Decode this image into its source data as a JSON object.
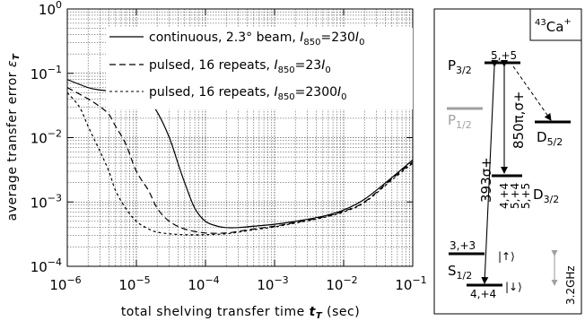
{
  "chart_data": {
    "type": "line",
    "xscale": "log",
    "yscale": "log",
    "xlim": [
      1e-06,
      0.1
    ],
    "ylim": [
      0.0001,
      1
    ],
    "xlabel": {
      "main": "total shelving transfer time ",
      "sym": "t",
      "sub": "T",
      "unit": " (sec)"
    },
    "ylabel": {
      "main": "average transfer error ",
      "sym": "ε",
      "sub": "T"
    },
    "x_tick_labels": [
      {
        "base": "10",
        "exp": "−6"
      },
      {
        "base": "10",
        "exp": "−5"
      },
      {
        "base": "10",
        "exp": "−4"
      },
      {
        "base": "10",
        "exp": "−3"
      },
      {
        "base": "10",
        "exp": "−2"
      },
      {
        "base": "10",
        "exp": "−1"
      }
    ],
    "y_tick_labels": [
      {
        "base": "10",
        "exp": "0"
      },
      {
        "base": "10",
        "exp": "−1"
      },
      {
        "base": "10",
        "exp": "−2"
      },
      {
        "base": "10",
        "exp": "−3"
      },
      {
        "base": "10",
        "exp": "−4"
      }
    ],
    "grid": true,
    "legend_position": "top-right",
    "series": [
      {
        "name": "continuous, 2.3° beam, I850=230I0",
        "legend": {
          "text": "continuous, 2.3° beam, ",
          "var": "I",
          "sub": "850",
          "eq": "=230",
          "var2": "I",
          "sub2": "0"
        },
        "style": "solid",
        "x": [
          1e-06,
          2e-06,
          3e-06,
          5e-06,
          7e-06,
          1e-05,
          1.5e-05,
          2e-05,
          3e-05,
          4e-05,
          5e-05,
          7e-05,
          0.0001,
          0.00015,
          0.0002,
          0.0003,
          0.0005,
          0.001,
          0.002,
          0.005,
          0.01,
          0.02,
          0.05,
          0.1
        ],
        "y": [
          0.08,
          0.06,
          0.055,
          0.052,
          0.05,
          0.045,
          0.035,
          0.025,
          0.01,
          0.004,
          0.002,
          0.0008,
          0.0005,
          0.00042,
          0.0004,
          0.0004,
          0.00042,
          0.00045,
          0.0005,
          0.0006,
          0.00075,
          0.0011,
          0.0024,
          0.0045
        ]
      },
      {
        "name": "pulsed, 16 repeats, I850=23I0",
        "legend": {
          "text": "pulsed, 16 repeats, ",
          "var": "I",
          "sub": "850",
          "eq": "=23",
          "var2": "I",
          "sub2": "0"
        },
        "style": "dashed",
        "x": [
          1e-06,
          2e-06,
          3e-06,
          4e-06,
          5e-06,
          7e-06,
          1e-05,
          1.5e-05,
          2e-05,
          3e-05,
          5e-05,
          0.0001,
          0.0002,
          0.0003,
          0.0005,
          0.001,
          0.002,
          0.005,
          0.01,
          0.02,
          0.05,
          0.1
        ],
        "y": [
          0.06,
          0.04,
          0.03,
          0.023,
          0.015,
          0.008,
          0.003,
          0.0015,
          0.0008,
          0.0005,
          0.00038,
          0.00033,
          0.00033,
          0.00035,
          0.00038,
          0.00042,
          0.00048,
          0.00058,
          0.00072,
          0.001,
          0.0023,
          0.0042
        ]
      },
      {
        "name": "pulsed, 16 repeats, I850=2300I0",
        "legend": {
          "text": "pulsed, 16 repeats, ",
          "var": "I",
          "sub": "850",
          "eq": "=2300",
          "var2": "I",
          "sub2": "0"
        },
        "style": "short-dashed",
        "x": [
          1e-06,
          1.5e-06,
          2e-06,
          3e-06,
          4e-06,
          5e-06,
          7e-06,
          1e-05,
          1.5e-05,
          2e-05,
          3e-05,
          5e-05,
          0.0001,
          0.0002,
          0.0003,
          0.0005,
          0.001,
          0.002,
          0.005,
          0.01,
          0.02,
          0.05,
          0.1
        ],
        "y": [
          0.05,
          0.03,
          0.015,
          0.006,
          0.003,
          0.0015,
          0.0008,
          0.0005,
          0.00038,
          0.00034,
          0.00032,
          0.00031,
          0.00031,
          0.00032,
          0.00034,
          0.00037,
          0.00041,
          0.00047,
          0.00057,
          0.0007,
          0.00098,
          0.0022,
          0.004
        ]
      }
    ]
  },
  "level_diagram": {
    "isotope": {
      "mass": "43",
      "element": "Ca",
      "charge": "+"
    },
    "levels": [
      {
        "id": "P32",
        "letter": "P",
        "sub": "3/2",
        "sublevel": "5,+5",
        "color": "#000000"
      },
      {
        "id": "P12",
        "letter": "P",
        "sub": "1/2",
        "sublevel": "",
        "color": "#a0a0a0"
      },
      {
        "id": "D52",
        "letter": "D",
        "sub": "5/2",
        "sublevel": "",
        "color": "#000000"
      },
      {
        "id": "D32",
        "letter": "D",
        "sub": "3/2",
        "sublevel": "4,+4 5,+4 5,+5",
        "color": "#000000"
      },
      {
        "id": "S12_up",
        "letter": "S",
        "sub": "1/2",
        "sublevel": "3,+3",
        "state": "|↑⟩",
        "color": "#000000"
      },
      {
        "id": "S12_down",
        "sublevel": "4,+4",
        "state": "|↓⟩",
        "color": "#000000"
      }
    ],
    "transitions": [
      {
        "label": "393σ+",
        "from": "S12_down",
        "to": "P32"
      },
      {
        "label": "850π,σ+",
        "from": "P32",
        "to": "D32"
      }
    ],
    "sublevel_labels": [
      "4,+4",
      "5,+4",
      "5,+5"
    ],
    "hyperfine_splitting": "3.2GHz",
    "accent_gray": "#a0a0a0"
  }
}
